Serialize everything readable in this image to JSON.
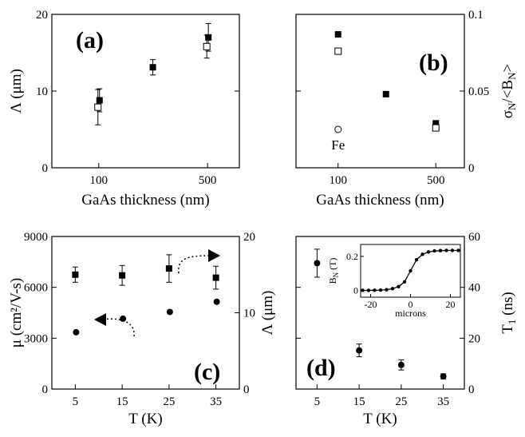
{
  "chart_data": [
    {
      "id": "a",
      "type": "scatter",
      "panel_label": "(a)",
      "xlabel": "GaAs thickness (nm)",
      "ylabel": "Λ (μm)",
      "xscale": "log",
      "xlim": [
        50,
        800
      ],
      "ylim": [
        0,
        20
      ],
      "xticks": [
        100,
        500
      ],
      "yticks": [
        0,
        10,
        20
      ],
      "series": [
        {
          "marker": "filled-square",
          "points": [
            {
              "x": 100,
              "y": 8.8,
              "err": 1.5
            },
            {
              "x": 220,
              "y": 13.1,
              "err": 1.0
            },
            {
              "x": 500,
              "y": 17.0,
              "err": 1.8
            }
          ]
        },
        {
          "marker": "open-square",
          "points": [
            {
              "x": 100,
              "y": 7.9,
              "err": 2.3
            },
            {
              "x": 500,
              "y": 15.8,
              "err": 1.5
            }
          ]
        }
      ]
    },
    {
      "id": "b",
      "type": "scatter",
      "panel_label": "(b)",
      "xlabel": "GaAs thickness (nm)",
      "ylabel": "σN/<BN>",
      "ylabel_parts": {
        "main": "σ",
        "sub1": "N",
        "mid": "/<B",
        "sub2": "N",
        "end": ">"
      },
      "xscale": "log",
      "xlim": [
        50,
        800
      ],
      "ylim": [
        0,
        0.1
      ],
      "xticks": [
        100,
        500
      ],
      "yticks": [
        0,
        0.05,
        0.1
      ],
      "ytick_labels": [
        "0",
        "0.05",
        "0.1"
      ],
      "annotation": "Fe",
      "series": [
        {
          "marker": "filled-square",
          "points": [
            {
              "x": 100,
              "y": 0.087
            },
            {
              "x": 220,
              "y": 0.048
            },
            {
              "x": 500,
              "y": 0.029
            }
          ]
        },
        {
          "marker": "open-square",
          "points": [
            {
              "x": 100,
              "y": 0.076
            },
            {
              "x": 500,
              "y": 0.026
            }
          ]
        },
        {
          "marker": "open-circle",
          "points": [
            {
              "x": 100,
              "y": 0.025
            }
          ]
        }
      ]
    },
    {
      "id": "c",
      "type": "scatter",
      "panel_label": "(c)",
      "xlabel": "T (K)",
      "ylabel": "μ (cm²/V-s)",
      "ylabel_right": "Λ (μm)",
      "xlim": [
        0,
        40
      ],
      "ylim": [
        0,
        9000
      ],
      "ylim_right": [
        0,
        20
      ],
      "xticks": [
        5,
        15,
        25,
        35
      ],
      "yticks": [
        0,
        3000,
        6000,
        9000
      ],
      "yticks_right": [
        0,
        10,
        20
      ],
      "series": [
        {
          "marker": "filled-circle",
          "axis": "left",
          "points": [
            {
              "x": 5,
              "y": 3350
            },
            {
              "x": 15,
              "y": 4150
            },
            {
              "x": 25,
              "y": 4550
            },
            {
              "x": 35,
              "y": 5150
            }
          ]
        },
        {
          "marker": "filled-square",
          "axis": "right",
          "points": [
            {
              "x": 5,
              "y": 15.0,
              "err": 1.0
            },
            {
              "x": 15,
              "y": 14.9,
              "err": 1.3
            },
            {
              "x": 25,
              "y": 15.8,
              "err": 1.8
            },
            {
              "x": 35,
              "y": 14.6,
              "err": 1.5
            }
          ]
        }
      ]
    },
    {
      "id": "d",
      "type": "scatter",
      "panel_label": "(d)",
      "xlabel": "T (K)",
      "ylabel_right": "T1 (ns)",
      "ylabel_right_parts": {
        "main": "T",
        "sub": "1",
        "end": " (ns)"
      },
      "xlim": [
        0,
        40
      ],
      "ylim": [
        0,
        60
      ],
      "xticks": [
        5,
        15,
        25,
        35
      ],
      "yticks": [
        0,
        20,
        40,
        60
      ],
      "series": [
        {
          "marker": "filled-circle",
          "points": [
            {
              "x": 5,
              "y": 49.5,
              "err": 5.5
            },
            {
              "x": 15,
              "y": 15.2,
              "err": 2.5
            },
            {
              "x": 25,
              "y": 9.5,
              "err": 2.0
            },
            {
              "x": 35,
              "y": 5.0,
              "err": 1.0
            }
          ]
        }
      ],
      "inset": {
        "type": "line",
        "xlabel": "microns",
        "ylabel": "BN (T)",
        "ylabel_parts": {
          "main": "B",
          "sub": "N",
          "end": " (T)"
        },
        "xlim": [
          -25,
          25
        ],
        "ylim": [
          -0.04,
          0.27
        ],
        "xticks": [
          -20,
          0,
          20
        ],
        "yticks": [
          0,
          0.2
        ],
        "ytick_labels": [
          "0",
          "0.2"
        ],
        "x": [
          -24,
          -21,
          -18,
          -15,
          -12,
          -9,
          -6,
          -3,
          0,
          3,
          6,
          9,
          12,
          15,
          18,
          21,
          24
        ],
        "y": [
          0.0,
          0.0,
          0.001,
          0.002,
          0.004,
          0.01,
          0.022,
          0.05,
          0.115,
          0.18,
          0.212,
          0.226,
          0.232,
          0.234,
          0.235,
          0.235,
          0.235
        ]
      }
    }
  ]
}
